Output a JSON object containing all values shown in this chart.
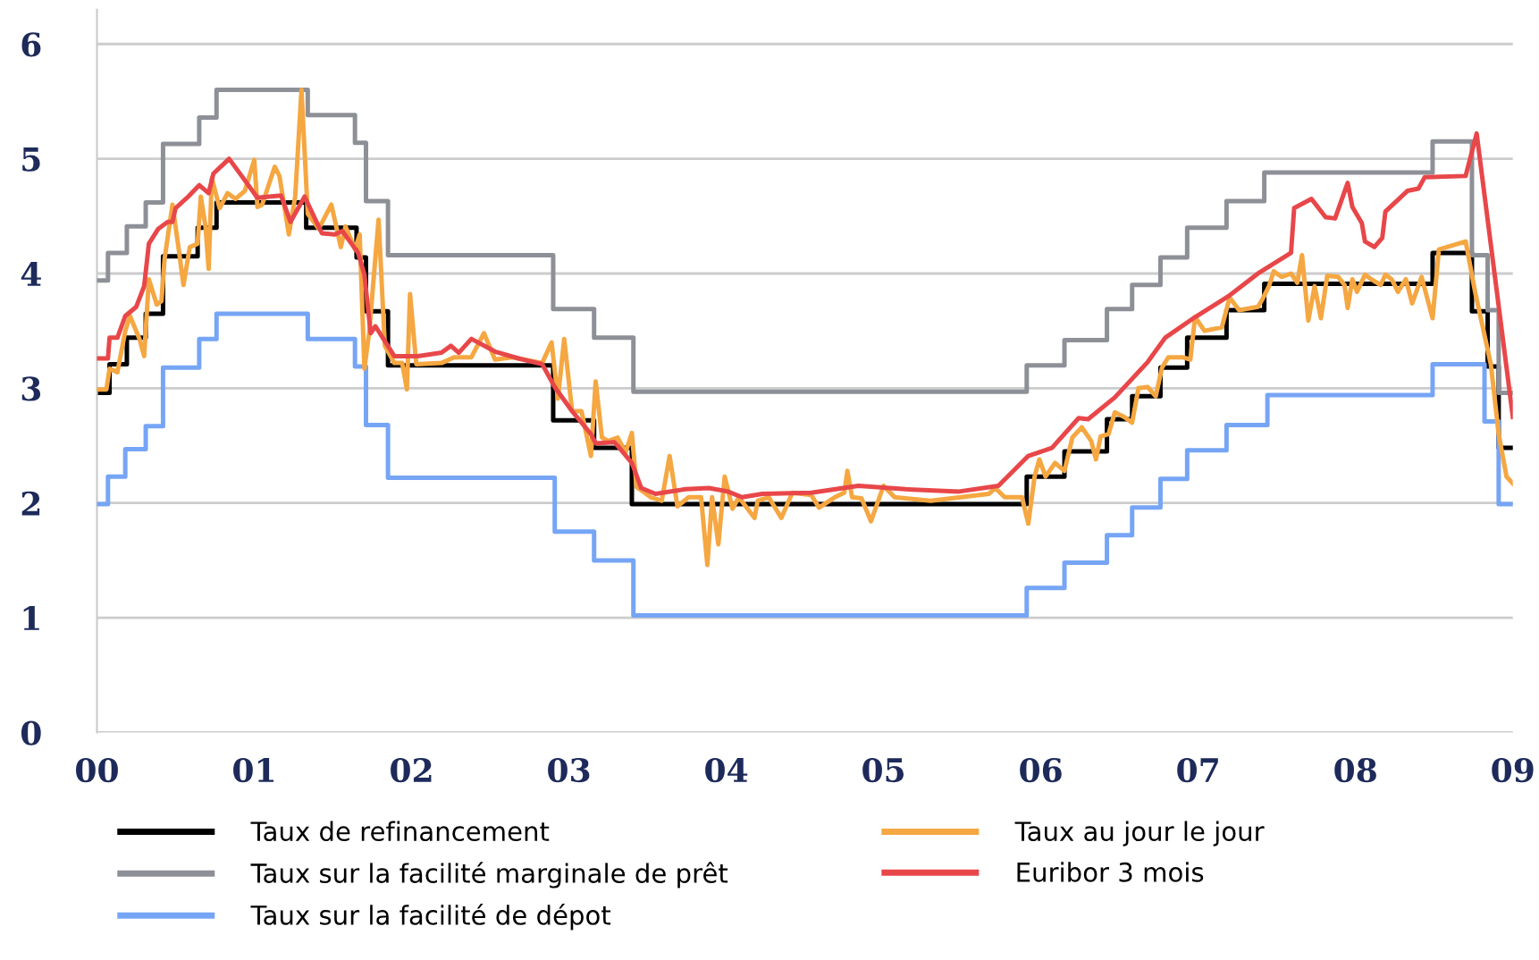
{
  "chart_data": {
    "type": "line",
    "xlim": [
      0,
      9
    ],
    "ylim": [
      0,
      6.3
    ],
    "yticks": [
      0,
      1,
      2,
      3,
      4,
      5,
      6
    ],
    "xticks": [
      {
        "value": 0,
        "label": "00"
      },
      {
        "value": 1,
        "label": "01"
      },
      {
        "value": 2,
        "label": "02"
      },
      {
        "value": 3,
        "label": "03"
      },
      {
        "value": 4,
        "label": "04"
      },
      {
        "value": 5,
        "label": "05"
      },
      {
        "value": 6,
        "label": "06"
      },
      {
        "value": 7,
        "label": "07"
      },
      {
        "value": 8,
        "label": "08"
      },
      {
        "value": 9,
        "label": "09"
      }
    ],
    "grid": "y",
    "legend": "bottom",
    "marker": "none",
    "line_style": "solid",
    "series": [
      {
        "name": "Taux de refinancement",
        "type": "step",
        "color": "#000000",
        "x": [
          0,
          0.08,
          0.19,
          0.31,
          0.42,
          0.64,
          0.76,
          1.33,
          1.65,
          1.71,
          1.85,
          2.9,
          3.16,
          3.4,
          5.91,
          6.15,
          6.42,
          6.58,
          6.76,
          6.93,
          7.18,
          7.42,
          8.49,
          8.74,
          8.84,
          8.91,
          9.0
        ],
        "values": [
          2.96,
          3.21,
          3.44,
          3.65,
          4.15,
          4.4,
          4.62,
          4.4,
          4.14,
          3.67,
          3.2,
          2.72,
          2.48,
          1.99,
          2.23,
          2.45,
          2.73,
          2.93,
          3.18,
          3.44,
          3.68,
          3.91,
          4.18,
          3.67,
          3.19,
          2.48,
          2.48
        ]
      },
      {
        "name": "Taux sur la facilité marginale de prêt",
        "type": "step",
        "color": "#8e9097",
        "x": [
          0,
          0.07,
          0.19,
          0.31,
          0.42,
          0.65,
          0.76,
          1.34,
          1.64,
          1.71,
          1.85,
          2.9,
          3.16,
          3.41,
          5.91,
          6.15,
          6.42,
          6.58,
          6.76,
          6.93,
          7.18,
          7.42,
          8.49,
          8.74,
          8.84,
          8.91,
          9.0
        ],
        "values": [
          3.94,
          4.18,
          4.41,
          4.62,
          5.13,
          5.36,
          5.6,
          5.38,
          5.14,
          4.63,
          4.16,
          3.69,
          3.44,
          2.97,
          3.2,
          3.42,
          3.69,
          3.9,
          4.14,
          4.4,
          4.63,
          4.88,
          5.15,
          4.16,
          3.68,
          2.96,
          2.96
        ]
      },
      {
        "name": "Taux sur la facilité de dépot",
        "type": "step",
        "color": "#76a5f5",
        "x": [
          0,
          0.07,
          0.18,
          0.31,
          0.42,
          0.65,
          0.76,
          1.34,
          1.64,
          1.71,
          1.85,
          2.91,
          3.16,
          3.41,
          5.91,
          6.15,
          6.42,
          6.58,
          6.76,
          6.93,
          7.18,
          7.44,
          8.49,
          8.82,
          8.91,
          9.0
        ],
        "values": [
          1.99,
          2.23,
          2.47,
          2.67,
          3.18,
          3.43,
          3.65,
          3.43,
          3.19,
          2.68,
          2.22,
          1.75,
          1.5,
          1.02,
          1.26,
          1.48,
          1.72,
          1.96,
          2.21,
          2.46,
          2.68,
          2.94,
          3.21,
          2.71,
          1.99,
          1.99
        ]
      },
      {
        "name": "Taux au jour le jour",
        "color": "#f5a742",
        "x": [
          0,
          0.06,
          0.08,
          0.13,
          0.18,
          0.21,
          0.27,
          0.3,
          0.33,
          0.38,
          0.41,
          0.43,
          0.48,
          0.52,
          0.55,
          0.59,
          0.64,
          0.66,
          0.69,
          0.71,
          0.73,
          0.78,
          0.83,
          0.88,
          0.94,
          1.0,
          1.02,
          1.05,
          1.13,
          1.16,
          1.22,
          1.26,
          1.3,
          1.34,
          1.41,
          1.49,
          1.55,
          1.58,
          1.64,
          1.67,
          1.7,
          1.73,
          1.79,
          1.83,
          1.89,
          1.94,
          1.97,
          1.99,
          2.03,
          2.19,
          2.27,
          2.38,
          2.46,
          2.53,
          2.64,
          2.83,
          2.89,
          2.93,
          2.97,
          3.02,
          3.08,
          3.14,
          3.17,
          3.21,
          3.25,
          3.31,
          3.36,
          3.4,
          3.43,
          3.52,
          3.59,
          3.64,
          3.69,
          3.76,
          3.84,
          3.88,
          3.91,
          3.95,
          3.99,
          4.04,
          4.08,
          4.18,
          4.2,
          4.27,
          4.35,
          4.42,
          4.54,
          4.59,
          4.69,
          4.75,
          4.77,
          4.8,
          4.86,
          4.92,
          5.0,
          5.07,
          5.3,
          5.67,
          5.71,
          5.77,
          5.88,
          5.92,
          5.96,
          5.99,
          6.03,
          6.09,
          6.15,
          6.2,
          6.26,
          6.32,
          6.35,
          6.38,
          6.43,
          6.47,
          6.53,
          6.58,
          6.62,
          6.68,
          6.73,
          6.77,
          6.81,
          6.9,
          6.95,
          6.98,
          7.04,
          7.15,
          7.2,
          7.26,
          7.38,
          7.41,
          7.45,
          7.48,
          7.53,
          7.59,
          7.63,
          7.66,
          7.7,
          7.74,
          7.78,
          7.82,
          7.89,
          7.93,
          7.95,
          7.98,
          8.01,
          8.06,
          8.1,
          8.16,
          8.19,
          8.23,
          8.27,
          8.32,
          8.36,
          8.42,
          8.49,
          8.53,
          8.7,
          8.76,
          8.86,
          8.91,
          8.96,
          9.0
        ],
        "values": [
          2.99,
          2.99,
          3.17,
          3.14,
          3.5,
          3.63,
          3.43,
          3.28,
          3.95,
          3.73,
          3.76,
          4.13,
          4.6,
          4.21,
          3.9,
          4.23,
          4.26,
          4.67,
          4.41,
          4.04,
          4.83,
          4.57,
          4.7,
          4.65,
          4.72,
          4.99,
          4.58,
          4.6,
          4.93,
          4.85,
          4.34,
          4.67,
          5.6,
          4.52,
          4.39,
          4.6,
          4.23,
          4.41,
          4.21,
          4.34,
          3.17,
          3.48,
          4.47,
          3.37,
          3.22,
          3.22,
          2.99,
          3.82,
          3.21,
          3.22,
          3.27,
          3.27,
          3.48,
          3.25,
          3.27,
          3.22,
          3.4,
          2.91,
          3.43,
          2.8,
          2.8,
          2.41,
          3.06,
          2.57,
          2.54,
          2.57,
          2.44,
          2.61,
          2.14,
          2.05,
          2.02,
          2.41,
          1.97,
          2.05,
          2.05,
          1.46,
          2.05,
          1.64,
          2.23,
          1.95,
          2.05,
          1.87,
          2.02,
          2.05,
          1.87,
          2.09,
          2.07,
          1.96,
          2.05,
          2.09,
          2.28,
          2.05,
          2.04,
          1.84,
          2.15,
          2.05,
          2.02,
          2.08,
          2.13,
          2.05,
          2.05,
          1.82,
          2.23,
          2.38,
          2.23,
          2.35,
          2.28,
          2.57,
          2.66,
          2.54,
          2.38,
          2.58,
          2.6,
          2.79,
          2.75,
          2.7,
          3.0,
          3.01,
          2.93,
          3.18,
          3.27,
          3.27,
          3.25,
          3.62,
          3.5,
          3.53,
          3.79,
          3.68,
          3.71,
          3.78,
          3.89,
          4.02,
          3.97,
          4.0,
          3.92,
          4.16,
          3.59,
          3.89,
          3.61,
          3.98,
          3.97,
          3.9,
          3.7,
          3.95,
          3.84,
          3.99,
          3.95,
          3.9,
          3.99,
          3.95,
          3.84,
          3.95,
          3.74,
          3.97,
          3.61,
          4.21,
          4.28,
          3.84,
          3.21,
          2.6,
          2.23,
          2.17
        ]
      },
      {
        "name": "Euribor 3 mois",
        "color": "#e8474a",
        "x": [
          0,
          0.07,
          0.08,
          0.13,
          0.18,
          0.25,
          0.3,
          0.33,
          0.39,
          0.45,
          0.48,
          0.5,
          0.58,
          0.65,
          0.71,
          0.74,
          0.84,
          0.92,
          1.02,
          1.17,
          1.23,
          1.32,
          1.43,
          1.51,
          1.56,
          1.66,
          1.7,
          1.74,
          1.77,
          1.89,
          2.04,
          2.19,
          2.25,
          2.3,
          2.38,
          2.53,
          2.68,
          2.83,
          2.91,
          3.02,
          3.14,
          3.17,
          3.29,
          3.4,
          3.46,
          3.55,
          3.74,
          3.89,
          4.01,
          4.1,
          4.23,
          4.54,
          4.84,
          5.14,
          5.48,
          5.73,
          5.92,
          6.07,
          6.24,
          6.3,
          6.47,
          6.68,
          6.79,
          6.98,
          7.19,
          7.38,
          7.59,
          7.61,
          7.72,
          7.81,
          7.87,
          7.95,
          7.98,
          8.04,
          8.06,
          8.12,
          8.17,
          8.19,
          8.33,
          8.4,
          8.44,
          8.7,
          8.77,
          9.0
        ],
        "values": [
          3.26,
          3.26,
          3.44,
          3.44,
          3.63,
          3.71,
          3.89,
          4.26,
          4.39,
          4.45,
          4.45,
          4.57,
          4.67,
          4.77,
          4.7,
          4.87,
          5.0,
          4.85,
          4.66,
          4.68,
          4.45,
          4.67,
          4.35,
          4.34,
          4.37,
          4.18,
          3.99,
          3.48,
          3.54,
          3.28,
          3.28,
          3.31,
          3.37,
          3.31,
          3.43,
          3.32,
          3.26,
          3.21,
          3.01,
          2.8,
          2.6,
          2.52,
          2.53,
          2.35,
          2.13,
          2.08,
          2.12,
          2.13,
          2.1,
          2.05,
          2.08,
          2.09,
          2.15,
          2.12,
          2.1,
          2.15,
          2.41,
          2.48,
          2.74,
          2.73,
          2.92,
          3.23,
          3.44,
          3.62,
          3.8,
          4.0,
          4.18,
          4.57,
          4.65,
          4.49,
          4.48,
          4.79,
          4.58,
          4.44,
          4.28,
          4.23,
          4.31,
          4.54,
          4.72,
          4.74,
          4.84,
          4.85,
          5.22,
          2.75
        ]
      }
    ]
  }
}
